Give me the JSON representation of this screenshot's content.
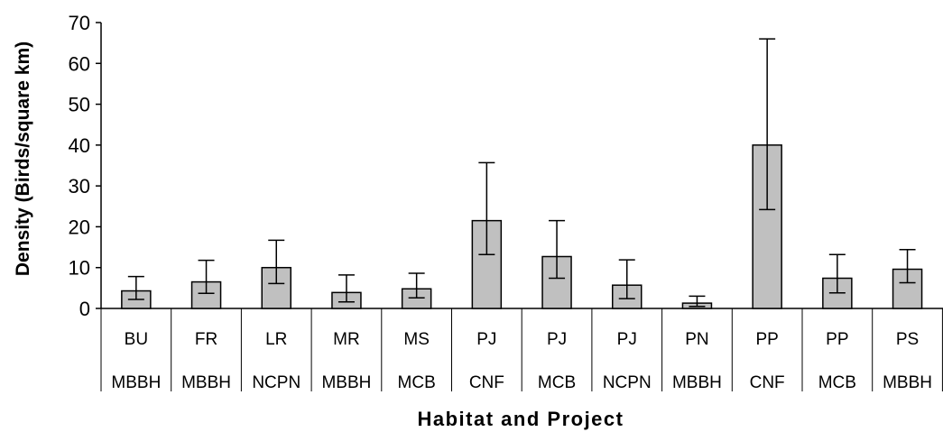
{
  "chart_data": {
    "type": "bar",
    "title": "",
    "xlabel": "Habitat and Project",
    "ylabel": "Density (Birds/square km)",
    "ylim": [
      0,
      70
    ],
    "yticks": [
      0,
      10,
      20,
      30,
      40,
      50,
      60,
      70
    ],
    "grid": false,
    "categories": [
      [
        "BU",
        "MBBH"
      ],
      [
        "FR",
        "MBBH"
      ],
      [
        "LR",
        "NCPN"
      ],
      [
        "MR",
        "MBBH"
      ],
      [
        "MS",
        "MCB"
      ],
      [
        "PJ",
        "CNF"
      ],
      [
        "PJ",
        "MCB"
      ],
      [
        "PJ",
        "NCPN"
      ],
      [
        "PN",
        "MBBH"
      ],
      [
        "PP",
        "CNF"
      ],
      [
        "PP",
        "MCB"
      ],
      [
        "PS",
        "MBBH"
      ]
    ],
    "values": [
      4.3,
      6.5,
      10.0,
      3.9,
      4.8,
      21.5,
      12.7,
      5.7,
      1.3,
      40.0,
      7.4,
      9.6
    ],
    "error_low": [
      2.2,
      3.7,
      6.1,
      1.6,
      2.6,
      13.2,
      7.4,
      2.4,
      0.5,
      24.2,
      3.8,
      6.3
    ],
    "error_high": [
      7.8,
      11.8,
      16.7,
      8.2,
      8.6,
      35.7,
      21.5,
      11.9,
      3.0,
      66.0,
      13.2,
      14.4
    ],
    "bar_color": "#c0c0c0"
  }
}
